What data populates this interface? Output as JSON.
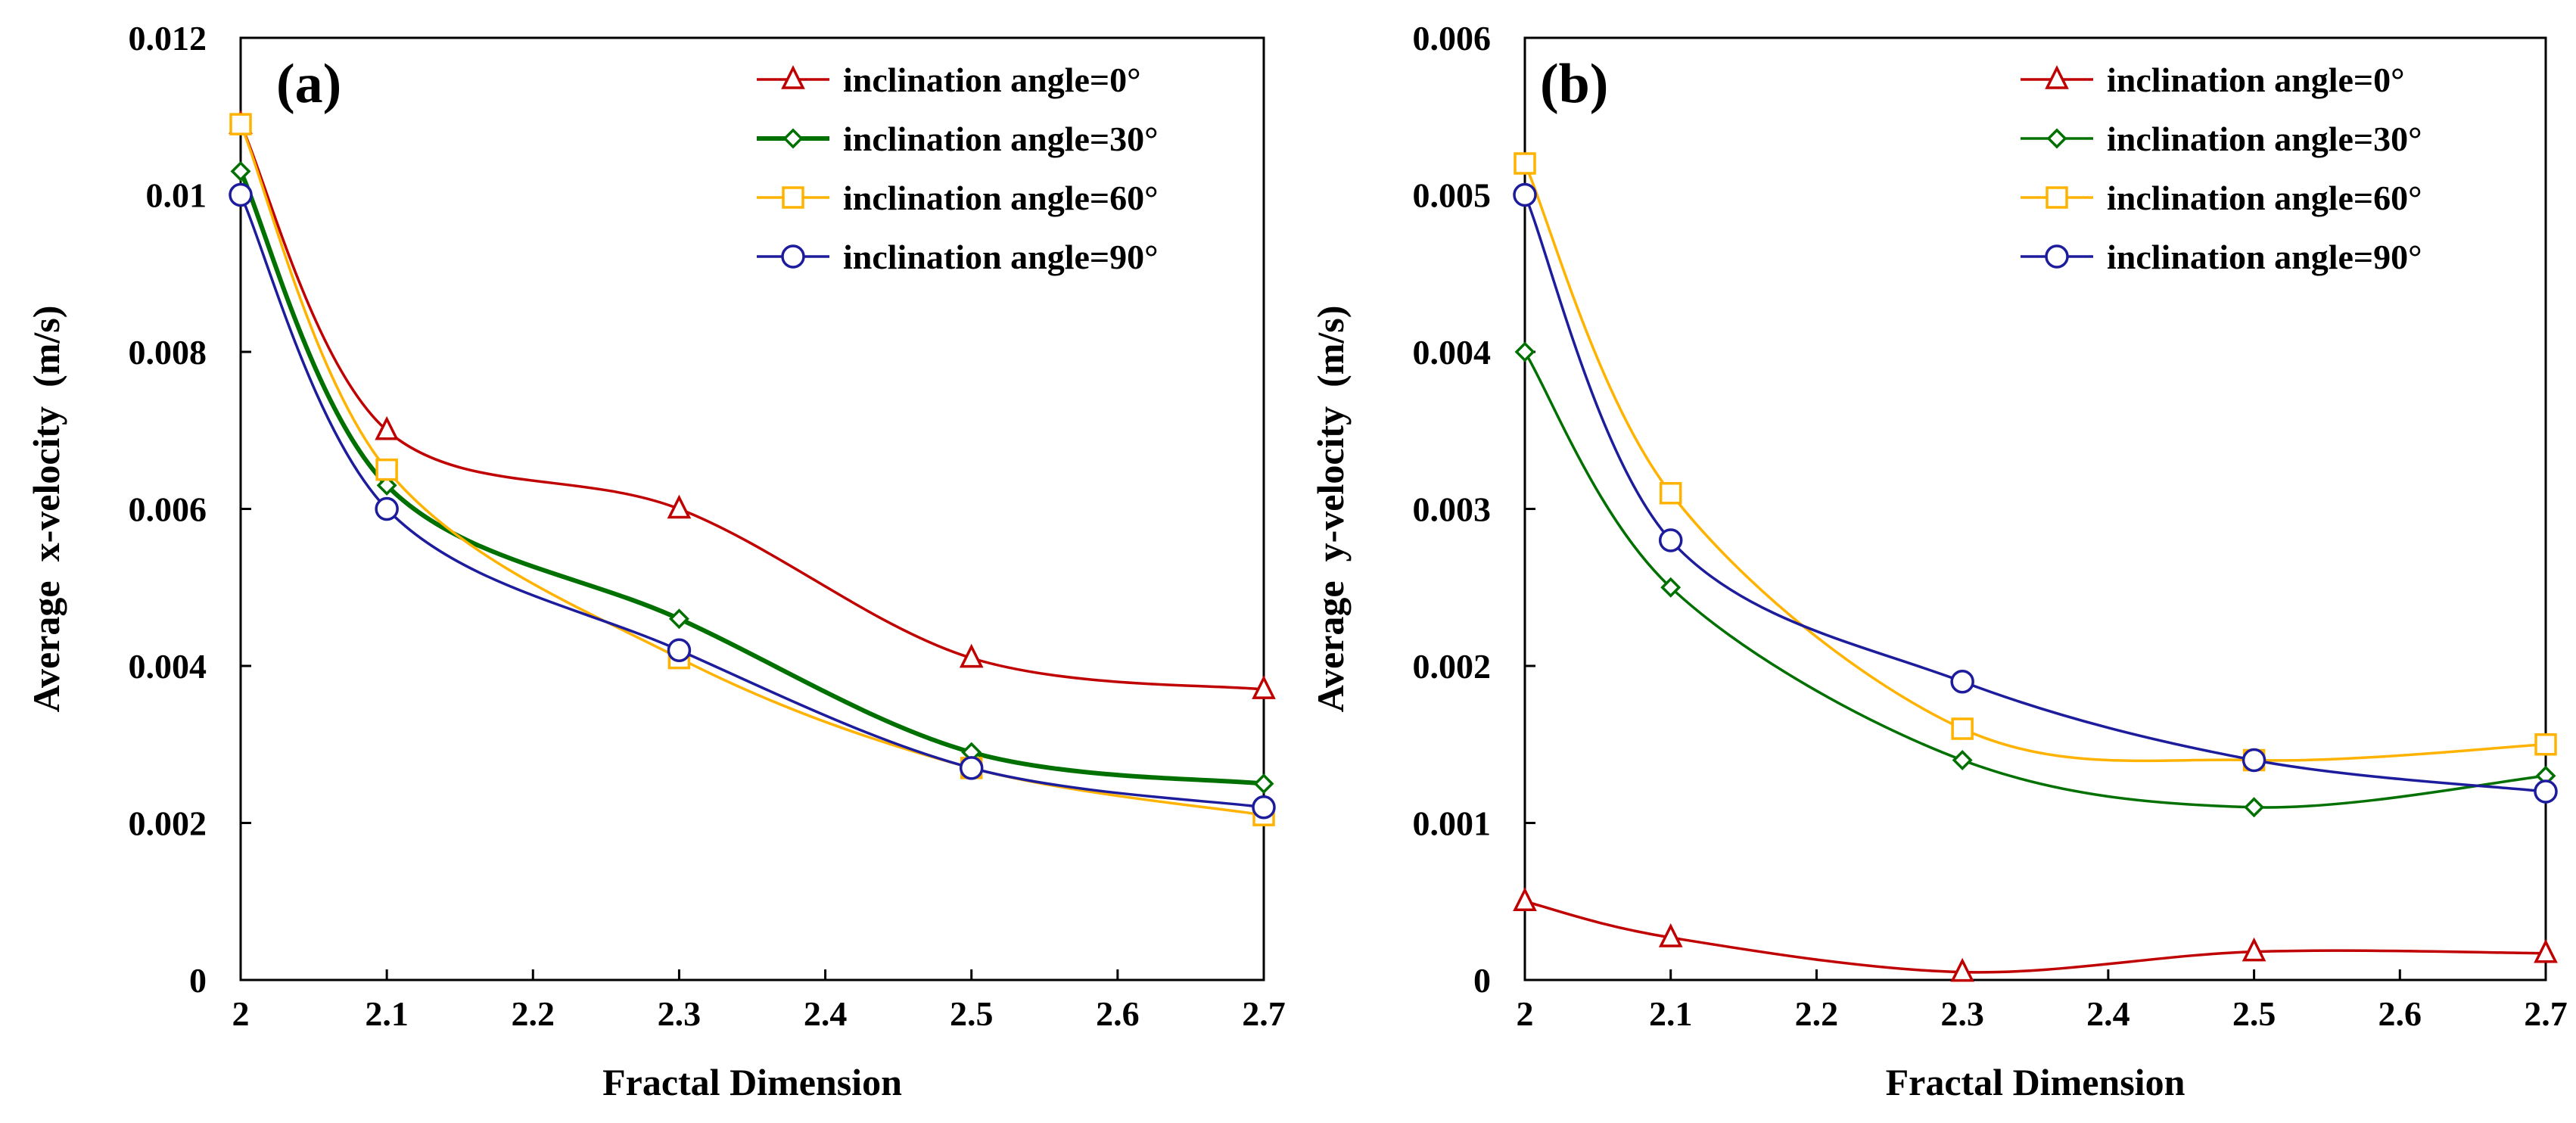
{
  "chart_data": [
    {
      "type": "line",
      "panel_label": "(a)",
      "xlabel": "Fractal Dimension",
      "ylabel": "Average  x-velocity  (m/s)",
      "xlim": [
        2,
        2.7
      ],
      "ylim": [
        0,
        0.012
      ],
      "x_ticks": [
        "2",
        "2.1",
        "2.2",
        "2.3",
        "2.4",
        "2.5",
        "2.6",
        "2.7"
      ],
      "y_ticks": [
        "0",
        "0.002",
        "0.004",
        "0.006",
        "0.008",
        "0.01",
        "0.012"
      ],
      "x": [
        2.0,
        2.1,
        2.3,
        2.5,
        2.7
      ],
      "legend_position": "top-right",
      "series": [
        {
          "name": "inclination angle=0°",
          "color": "#C00000",
          "marker": "triangle",
          "values": [
            0.0109,
            0.007,
            0.006,
            0.0041,
            0.0037
          ]
        },
        {
          "name": "inclination angle=30°",
          "color": "#007000",
          "marker": "diamond",
          "values": [
            0.0103,
            0.0063,
            0.0046,
            0.0029,
            0.0025
          ]
        },
        {
          "name": "inclination angle=60°",
          "color": "#FFB300",
          "marker": "square",
          "values": [
            0.0109,
            0.0065,
            0.0041,
            0.0027,
            0.0021
          ]
        },
        {
          "name": "inclination angle=90°",
          "color": "#1C1C9C",
          "marker": "circle",
          "values": [
            0.01,
            0.006,
            0.0042,
            0.0027,
            0.0022
          ]
        }
      ]
    },
    {
      "type": "line",
      "panel_label": "(b)",
      "xlabel": "Fractal Dimension",
      "ylabel": "Average  y-velocity  (m/s)",
      "xlim": [
        2,
        2.7
      ],
      "ylim": [
        0,
        0.006
      ],
      "x_ticks": [
        "2",
        "2.1",
        "2.2",
        "2.3",
        "2.4",
        "2.5",
        "2.6",
        "2.7"
      ],
      "y_ticks": [
        "0",
        "0.001",
        "0.002",
        "0.003",
        "0.004",
        "0.005",
        "0.006"
      ],
      "x": [
        2.0,
        2.1,
        2.3,
        2.5,
        2.7
      ],
      "legend_position": "top-right",
      "series": [
        {
          "name": "inclination angle=0°",
          "color": "#C00000",
          "marker": "triangle",
          "values": [
            0.0005,
            0.00027,
            5e-05,
            0.00018,
            0.00017
          ]
        },
        {
          "name": "inclination angle=30°",
          "color": "#007000",
          "marker": "diamond",
          "values": [
            0.004,
            0.0025,
            0.0014,
            0.0011,
            0.0013
          ]
        },
        {
          "name": "inclination angle=60°",
          "color": "#FFB300",
          "marker": "square",
          "values": [
            0.0052,
            0.0031,
            0.0016,
            0.0014,
            0.0015
          ]
        },
        {
          "name": "inclination angle=90°",
          "color": "#1C1C9C",
          "marker": "circle",
          "values": [
            0.005,
            0.0028,
            0.0019,
            0.0014,
            0.0012
          ]
        }
      ]
    }
  ]
}
